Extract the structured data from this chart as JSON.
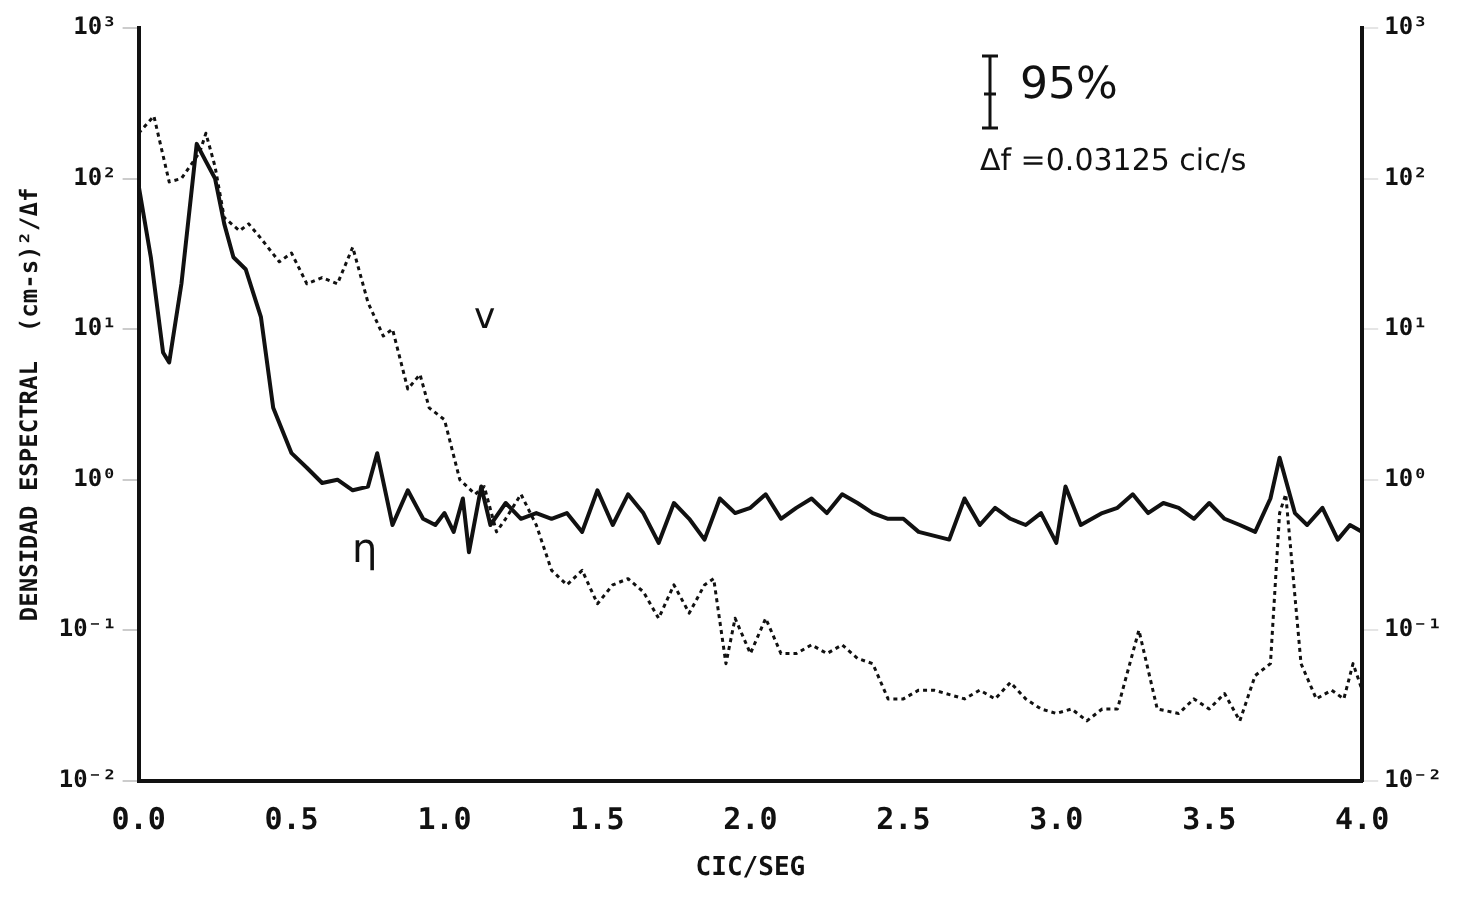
{
  "chart_data": {
    "type": "line",
    "xlabel": "CIC/SEG",
    "ylabel": "DENSIDAD ESPECTRAL  (cm-s)²/Δf",
    "log": "y",
    "grid": false,
    "legend": false,
    "marker": "none",
    "xlim": [
      0,
      4
    ],
    "xticks": [
      {
        "value": 0,
        "label": "0.0"
      },
      {
        "value": 0.5,
        "label": "0.5"
      },
      {
        "value": 1,
        "label": "1.0"
      },
      {
        "value": 1.5,
        "label": "1.5"
      },
      {
        "value": 2,
        "label": "2.0"
      },
      {
        "value": 2.5,
        "label": "2.5"
      },
      {
        "value": 3,
        "label": "3.0"
      },
      {
        "value": 3.5,
        "label": "3.5"
      },
      {
        "value": 4,
        "label": "4.0"
      }
    ],
    "ylim": [
      0.01,
      1000
    ],
    "yticks": [
      {
        "value": 0.01,
        "label": "10⁻²"
      },
      {
        "value": 0.1,
        "label": "10⁻¹"
      },
      {
        "value": 1,
        "label": "10⁰"
      },
      {
        "value": 10,
        "label": "10¹"
      },
      {
        "value": 100,
        "label": "10²"
      },
      {
        "value": 1000,
        "label": "10³"
      }
    ],
    "series": [
      {
        "color": "#111111",
        "line_style": "solid",
        "x": [
          0,
          0.04,
          0.08,
          0.1,
          0.14,
          0.19,
          0.22,
          0.25,
          0.28,
          0.31,
          0.35,
          0.4,
          0.44,
          0.5,
          0.55,
          0.6,
          0.65,
          0.7,
          0.75,
          0.78,
          0.83,
          0.88,
          0.93,
          0.97,
          1,
          1.03,
          1.06,
          1.08,
          1.12,
          1.15,
          1.2,
          1.25,
          1.3,
          1.35,
          1.4,
          1.45,
          1.5,
          1.55,
          1.6,
          1.65,
          1.7,
          1.75,
          1.8,
          1.85,
          1.9,
          1.95,
          2,
          2.05,
          2.1,
          2.15,
          2.2,
          2.25,
          2.3,
          2.35,
          2.4,
          2.45,
          2.5,
          2.55,
          2.65,
          2.7,
          2.75,
          2.8,
          2.85,
          2.9,
          2.95,
          3,
          3.03,
          3.08,
          3.15,
          3.2,
          3.25,
          3.3,
          3.35,
          3.4,
          3.45,
          3.5,
          3.55,
          3.6,
          3.65,
          3.7,
          3.73,
          3.78,
          3.82,
          3.87,
          3.92,
          3.96,
          4
        ],
        "values": [
          90,
          30,
          7,
          6,
          20,
          170,
          130,
          100,
          50,
          30,
          25,
          12,
          3,
          1.5,
          1.2,
          0.95,
          1,
          0.85,
          0.9,
          1.5,
          0.5,
          0.85,
          0.55,
          0.5,
          0.6,
          0.45,
          0.75,
          0.33,
          0.9,
          0.5,
          0.7,
          0.55,
          0.6,
          0.55,
          0.6,
          0.45,
          0.85,
          0.5,
          0.8,
          0.6,
          0.38,
          0.7,
          0.55,
          0.4,
          0.75,
          0.6,
          0.65,
          0.8,
          0.55,
          0.65,
          0.75,
          0.6,
          0.8,
          0.7,
          0.6,
          0.55,
          0.55,
          0.45,
          0.4,
          0.75,
          0.5,
          0.65,
          0.55,
          0.5,
          0.6,
          0.38,
          0.9,
          0.5,
          0.6,
          0.65,
          0.8,
          0.6,
          0.7,
          0.65,
          0.55,
          0.7,
          0.55,
          0.5,
          0.45,
          0.75,
          1.4,
          0.6,
          0.5,
          0.65,
          0.4,
          0.5,
          0.45
        ]
      },
      {
        "color": "#111111",
        "line_style": "dotted",
        "x": [
          0,
          0.05,
          0.1,
          0.14,
          0.2,
          0.22,
          0.25,
          0.28,
          0.33,
          0.36,
          0.4,
          0.46,
          0.5,
          0.55,
          0.6,
          0.65,
          0.7,
          0.75,
          0.8,
          0.83,
          0.88,
          0.92,
          0.95,
          1,
          1.05,
          1.1,
          1.13,
          1.17,
          1.2,
          1.25,
          1.3,
          1.35,
          1.4,
          1.45,
          1.5,
          1.55,
          1.6,
          1.65,
          1.7,
          1.75,
          1.8,
          1.85,
          1.88,
          1.92,
          1.95,
          2,
          2.05,
          2.1,
          2.15,
          2.2,
          2.25,
          2.3,
          2.35,
          2.4,
          2.45,
          2.5,
          2.55,
          2.6,
          2.7,
          2.75,
          2.8,
          2.85,
          2.9,
          2.95,
          3,
          3.05,
          3.1,
          3.15,
          3.2,
          3.27,
          3.33,
          3.4,
          3.45,
          3.5,
          3.55,
          3.6,
          3.65,
          3.7,
          3.73,
          3.75,
          3.8,
          3.85,
          3.9,
          3.94,
          3.97,
          4
        ],
        "values": [
          200,
          260,
          95,
          100,
          150,
          200,
          120,
          55,
          45,
          50,
          40,
          28,
          32,
          20,
          22,
          20,
          35,
          15,
          9,
          10,
          4,
          5,
          3,
          2.5,
          1,
          0.8,
          0.9,
          0.45,
          0.55,
          0.8,
          0.5,
          0.25,
          0.2,
          0.25,
          0.15,
          0.2,
          0.22,
          0.18,
          0.12,
          0.2,
          0.13,
          0.2,
          0.22,
          0.06,
          0.12,
          0.07,
          0.12,
          0.07,
          0.07,
          0.08,
          0.07,
          0.08,
          0.065,
          0.06,
          0.035,
          0.035,
          0.04,
          0.04,
          0.035,
          0.04,
          0.035,
          0.045,
          0.035,
          0.03,
          0.028,
          0.03,
          0.025,
          0.03,
          0.03,
          0.1,
          0.03,
          0.028,
          0.035,
          0.03,
          0.038,
          0.025,
          0.05,
          0.06,
          0.6,
          0.8,
          0.06,
          0.035,
          0.04,
          0.035,
          0.06,
          0.04
        ]
      }
    ],
    "annotations": [
      "95%",
      "Δf =0.03125 cic/s",
      "v",
      "η"
    ]
  }
}
